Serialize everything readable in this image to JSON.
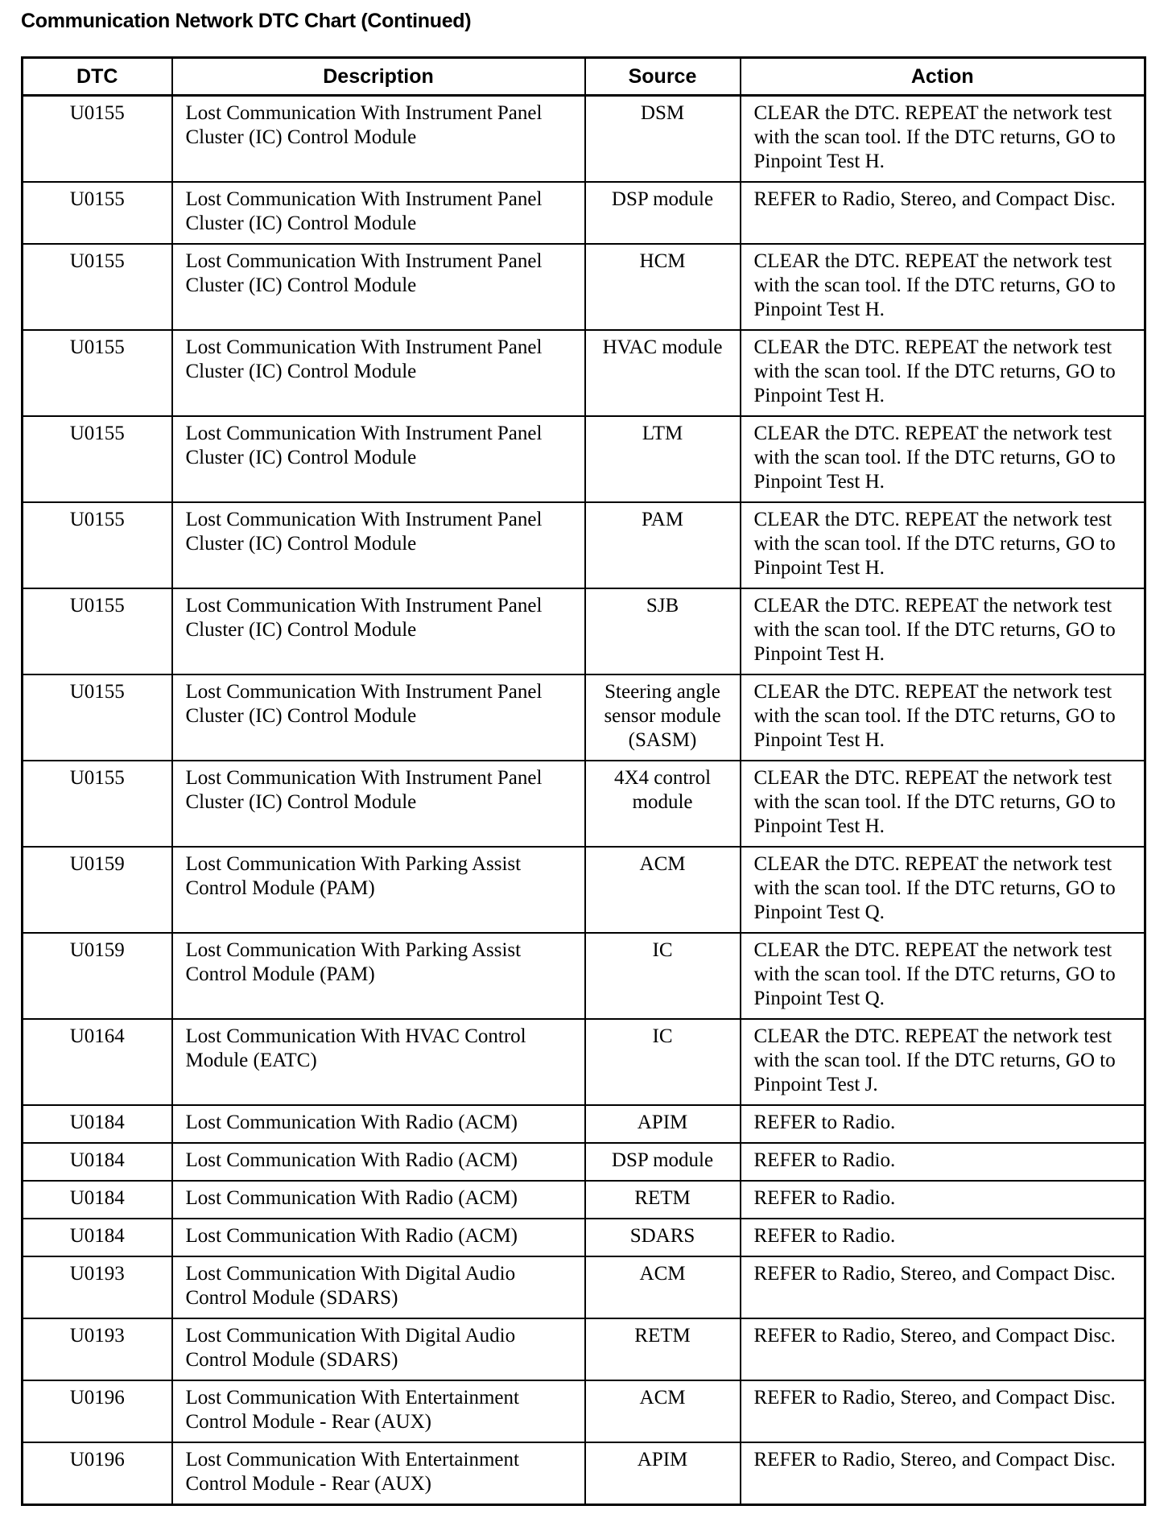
{
  "title": "Communication Network DTC Chart (Continued)",
  "table": {
    "headers": [
      "DTC",
      "Description",
      "Source",
      "Action"
    ],
    "rows": [
      {
        "dtc": "U0155",
        "description": "Lost Communication With Instrument Panel Cluster (IC) Control Module",
        "source": "DSM",
        "action": "CLEAR the DTC. REPEAT the network test with the scan tool. If the DTC returns, GO to Pinpoint Test H."
      },
      {
        "dtc": "U0155",
        "description": "Lost Communication With Instrument Panel Cluster (IC) Control Module",
        "source": "DSP module",
        "action": "REFER to Radio, Stereo, and Compact Disc."
      },
      {
        "dtc": "U0155",
        "description": "Lost Communication With Instrument Panel Cluster (IC) Control Module",
        "source": "HCM",
        "action": "CLEAR the DTC. REPEAT the network test with the scan tool. If the DTC returns, GO to Pinpoint Test H."
      },
      {
        "dtc": "U0155",
        "description": "Lost Communication With Instrument Panel Cluster (IC) Control Module",
        "source": "HVAC module",
        "action": "CLEAR the DTC. REPEAT the network test with the scan tool. If the DTC returns, GO to Pinpoint Test H."
      },
      {
        "dtc": "U0155",
        "description": "Lost Communication With Instrument Panel Cluster (IC) Control Module",
        "source": "LTM",
        "action": "CLEAR the DTC. REPEAT the network test with the scan tool. If the DTC returns, GO to Pinpoint Test H."
      },
      {
        "dtc": "U0155",
        "description": "Lost Communication With Instrument Panel Cluster (IC) Control Module",
        "source": "PAM",
        "action": "CLEAR the DTC. REPEAT the network test with the scan tool. If the DTC returns, GO to Pinpoint Test H."
      },
      {
        "dtc": "U0155",
        "description": "Lost Communication With Instrument Panel Cluster (IC) Control Module",
        "source": "SJB",
        "action": "CLEAR the DTC. REPEAT the network test with the scan tool. If the DTC returns, GO to Pinpoint Test H."
      },
      {
        "dtc": "U0155",
        "description": "Lost Communication With Instrument Panel Cluster (IC) Control Module",
        "source": "Steering angle sensor module (SASM)",
        "action": "CLEAR the DTC. REPEAT the network test with the scan tool. If the DTC returns, GO to Pinpoint Test H."
      },
      {
        "dtc": "U0155",
        "description": "Lost Communication With Instrument Panel Cluster (IC) Control Module",
        "source": "4X4 control module",
        "action": "CLEAR the DTC. REPEAT the network test with the scan tool. If the DTC returns, GO to Pinpoint Test H."
      },
      {
        "dtc": "U0159",
        "description": "Lost Communication With Parking Assist Control Module (PAM)",
        "source": "ACM",
        "action": "CLEAR the DTC. REPEAT the network test with the scan tool. If the DTC returns, GO to Pinpoint Test Q."
      },
      {
        "dtc": "U0159",
        "description": "Lost Communication With Parking Assist Control Module (PAM)",
        "source": "IC",
        "action": "CLEAR the DTC. REPEAT the network test with the scan tool. If the DTC returns, GO to Pinpoint Test Q."
      },
      {
        "dtc": "U0164",
        "description": "Lost Communication With HVAC Control Module (EATC)",
        "source": "IC",
        "action": "CLEAR the DTC. REPEAT the network test with the scan tool. If the DTC returns, GO to Pinpoint Test J."
      },
      {
        "dtc": "U0184",
        "description": "Lost Communication With Radio (ACM)",
        "source": "APIM",
        "action": "REFER to Radio."
      },
      {
        "dtc": "U0184",
        "description": "Lost Communication With Radio (ACM)",
        "source": "DSP module",
        "action": "REFER to Radio."
      },
      {
        "dtc": "U0184",
        "description": "Lost Communication With Radio (ACM)",
        "source": "RETM",
        "action": "REFER to Radio."
      },
      {
        "dtc": "U0184",
        "description": "Lost Communication With Radio (ACM)",
        "source": "SDARS",
        "action": "REFER to Radio."
      },
      {
        "dtc": "U0193",
        "description": "Lost Communication With Digital Audio Control Module (SDARS)",
        "source": "ACM",
        "action": "REFER to Radio, Stereo, and Compact Disc."
      },
      {
        "dtc": "U0193",
        "description": "Lost Communication With Digital Audio Control Module (SDARS)",
        "source": "RETM",
        "action": "REFER to Radio, Stereo, and Compact Disc."
      },
      {
        "dtc": "U0196",
        "description": "Lost Communication With Entertainment Control Module - Rear (AUX)",
        "source": "ACM",
        "action": "REFER to Radio, Stereo, and Compact Disc."
      },
      {
        "dtc": "U0196",
        "description": "Lost Communication With Entertainment Control Module - Rear (AUX)",
        "source": "APIM",
        "action": "REFER to Radio, Stereo, and Compact Disc."
      }
    ]
  }
}
